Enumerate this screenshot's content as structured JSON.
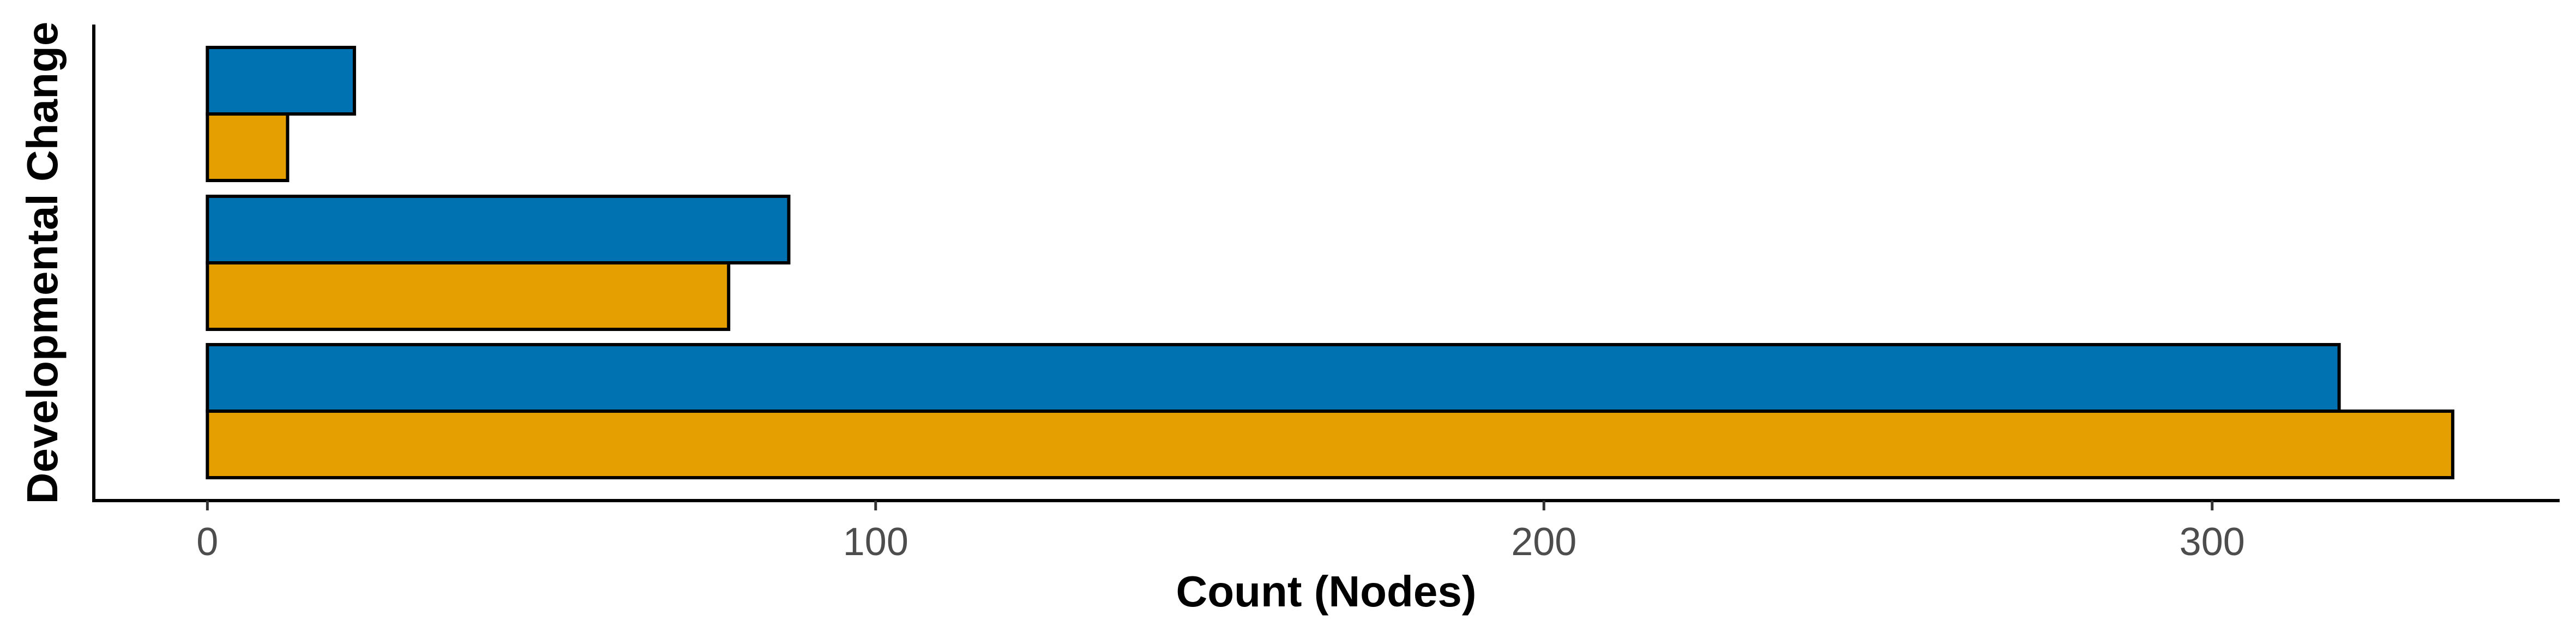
{
  "chart_data": {
    "type": "bar",
    "orientation": "horizontal",
    "xlabel": "Count (Nodes)",
    "ylabel": "Developmental Change",
    "xlim": [
      -17,
      352
    ],
    "x_ticks": [
      "0",
      "100",
      "200",
      "300"
    ],
    "grid": false,
    "legend": "none",
    "groups": [
      {
        "values": [
          319,
          336
        ]
      },
      {
        "values": [
          87,
          78
        ]
      },
      {
        "values": [
          22,
          12
        ]
      }
    ],
    "group_order": "bottom-to-top",
    "series": [
      {
        "color": "#0072B2",
        "values": [
          319,
          87,
          22
        ]
      },
      {
        "color": "#E69F00",
        "values": [
          336,
          78,
          12
        ]
      }
    ]
  }
}
